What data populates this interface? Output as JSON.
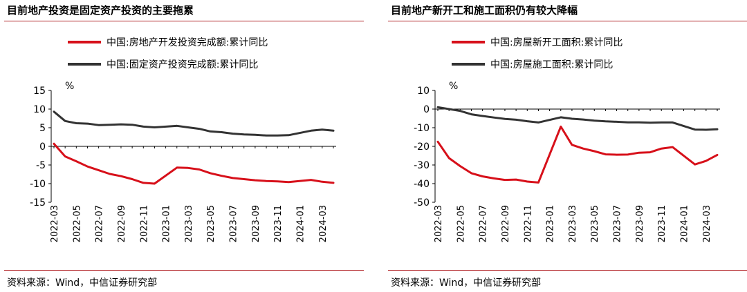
{
  "charts": [
    {
      "title": "目前地产投资是固定资产投资的主要拖累",
      "source": "资料来源：Wind，中信证券研究部",
      "chart_data": {
        "type": "line",
        "ylabel": "%",
        "ylim": [
          -15,
          15
        ],
        "yticks": [
          15,
          10,
          5,
          0,
          -5,
          -10,
          -15
        ],
        "x": [
          "2022-03",
          "2022-04",
          "2022-05",
          "2022-06",
          "2022-07",
          "2022-08",
          "2022-09",
          "2022-10",
          "2022-11",
          "2022-12",
          "2023-02",
          "2023-03",
          "2023-04",
          "2023-05",
          "2023-06",
          "2023-07",
          "2023-08",
          "2023-09",
          "2023-10",
          "2023-11",
          "2023-12",
          "2024-02",
          "2024-03",
          "2024-04"
        ],
        "xtick_labels": [
          "2022-03",
          "2022-05",
          "2022-07",
          "2022-09",
          "2022-11",
          "2023-01",
          "2023-03",
          "2023-05",
          "2023-07",
          "2023-09",
          "2023-11",
          "2024-01",
          "2024-03"
        ],
        "legend_position": "top",
        "series": [
          {
            "name": "中国:房地产开发投资完成额:累计同比",
            "color": "#d7101a",
            "values": [
              0.7,
              -2.7,
              -4.0,
              -5.4,
              -6.4,
              -7.4,
              -8.0,
              -8.8,
              -9.8,
              -10.0,
              -5.7,
              -5.8,
              -6.2,
              -7.2,
              -7.9,
              -8.5,
              -8.8,
              -9.1,
              -9.3,
              -9.4,
              -9.6,
              -9.0,
              -9.5,
              -9.8
            ]
          },
          {
            "name": "中国:固定资产投资完成额:累计同比",
            "color": "#333333",
            "values": [
              9.3,
              6.8,
              6.2,
              6.1,
              5.7,
              5.8,
              5.9,
              5.8,
              5.3,
              5.1,
              5.5,
              5.1,
              4.7,
              4.0,
              3.8,
              3.4,
              3.2,
              3.1,
              2.9,
              2.9,
              3.0,
              4.2,
              4.5,
              4.2
            ]
          }
        ]
      }
    },
    {
      "title": "目前地产新开工和施工面积仍有较大降幅",
      "source": "资料来源：Wind，中信证券研究部",
      "chart_data": {
        "type": "line",
        "ylabel": "%",
        "ylim": [
          -50,
          10
        ],
        "yticks": [
          10,
          0,
          -10,
          -20,
          -30,
          -40,
          -50
        ],
        "x": [
          "2022-03",
          "2022-04",
          "2022-05",
          "2022-06",
          "2022-07",
          "2022-08",
          "2022-09",
          "2022-10",
          "2022-11",
          "2022-12",
          "2023-02",
          "2023-03",
          "2023-04",
          "2023-05",
          "2023-06",
          "2023-07",
          "2023-08",
          "2023-09",
          "2023-10",
          "2023-11",
          "2023-12",
          "2024-02",
          "2024-03",
          "2024-04"
        ],
        "xtick_labels": [
          "2022-03",
          "2022-05",
          "2022-07",
          "2022-09",
          "2022-11",
          "2023-01",
          "2023-03",
          "2023-05",
          "2023-07",
          "2023-09",
          "2023-11",
          "2024-01",
          "2024-03"
        ],
        "legend_position": "top",
        "series": [
          {
            "name": "中国:房屋新开工面积:累计同比",
            "color": "#d7101a",
            "values": [
              -17.5,
              -26.3,
              -30.6,
              -34.4,
              -36.1,
              -37.2,
              -38.0,
              -37.8,
              -38.9,
              -39.4,
              -9.4,
              -19.2,
              -21.2,
              -22.6,
              -24.3,
              -24.5,
              -24.4,
              -23.4,
              -23.2,
              -21.2,
              -20.4,
              -29.7,
              -27.8,
              -24.6
            ]
          },
          {
            "name": "中国:房屋施工面积:累计同比",
            "color": "#333333",
            "values": [
              1.0,
              0.0,
              -1.0,
              -2.8,
              -3.7,
              -4.5,
              -5.3,
              -5.7,
              -6.5,
              -7.2,
              -4.4,
              -5.2,
              -5.6,
              -6.2,
              -6.6,
              -6.8,
              -7.1,
              -7.1,
              -7.3,
              -7.2,
              -7.2,
              -11.0,
              -11.1,
              -10.8
            ]
          }
        ]
      }
    }
  ]
}
